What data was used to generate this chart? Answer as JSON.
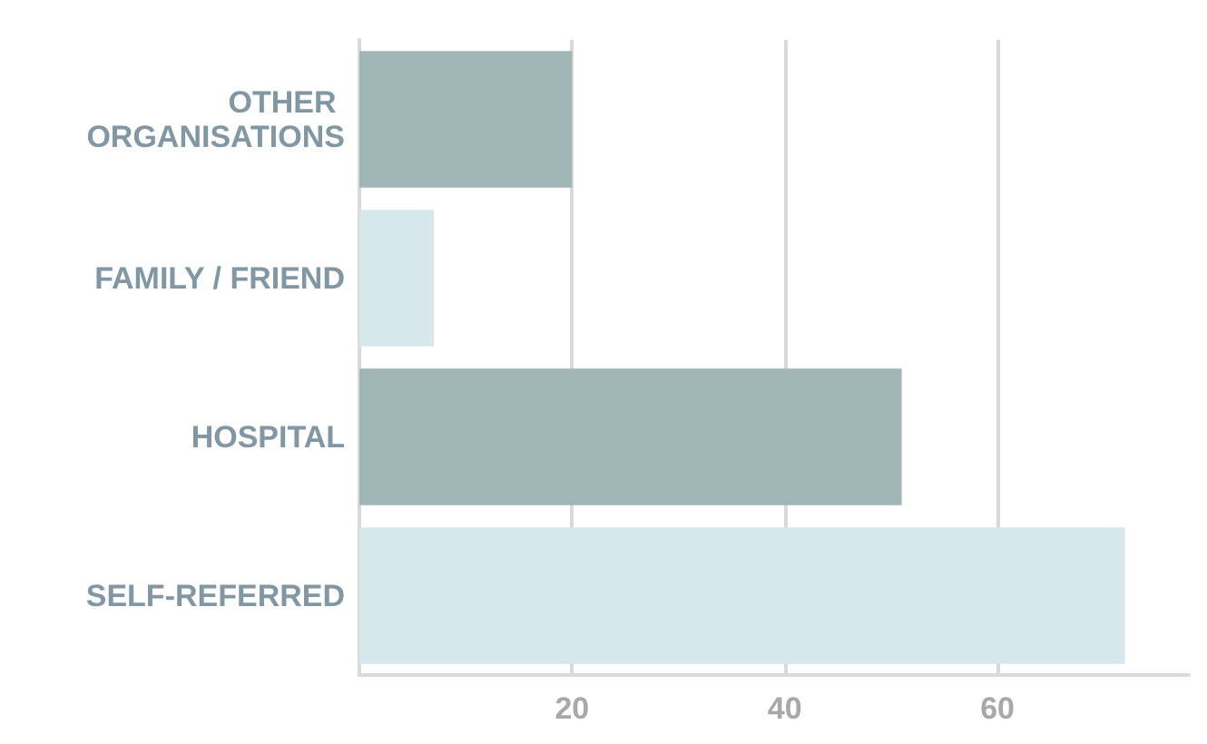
{
  "chart_data": {
    "type": "bar",
    "orientation": "horizontal",
    "categories": [
      "OTHER ORGANISATIONS",
      "FAMILY / FRIEND",
      "HOSPITAL",
      "SELF-REFERRED"
    ],
    "values": [
      20,
      7,
      51,
      72
    ],
    "colors": [
      "#9fb5b6",
      "#d7e8ec",
      "#9fb5b6",
      "#d7e8ec"
    ],
    "xlim": [
      0,
      78
    ],
    "xticks": [
      {
        "value": 0,
        "label": null
      },
      20,
      40,
      60
    ],
    "grid": "x"
  }
}
